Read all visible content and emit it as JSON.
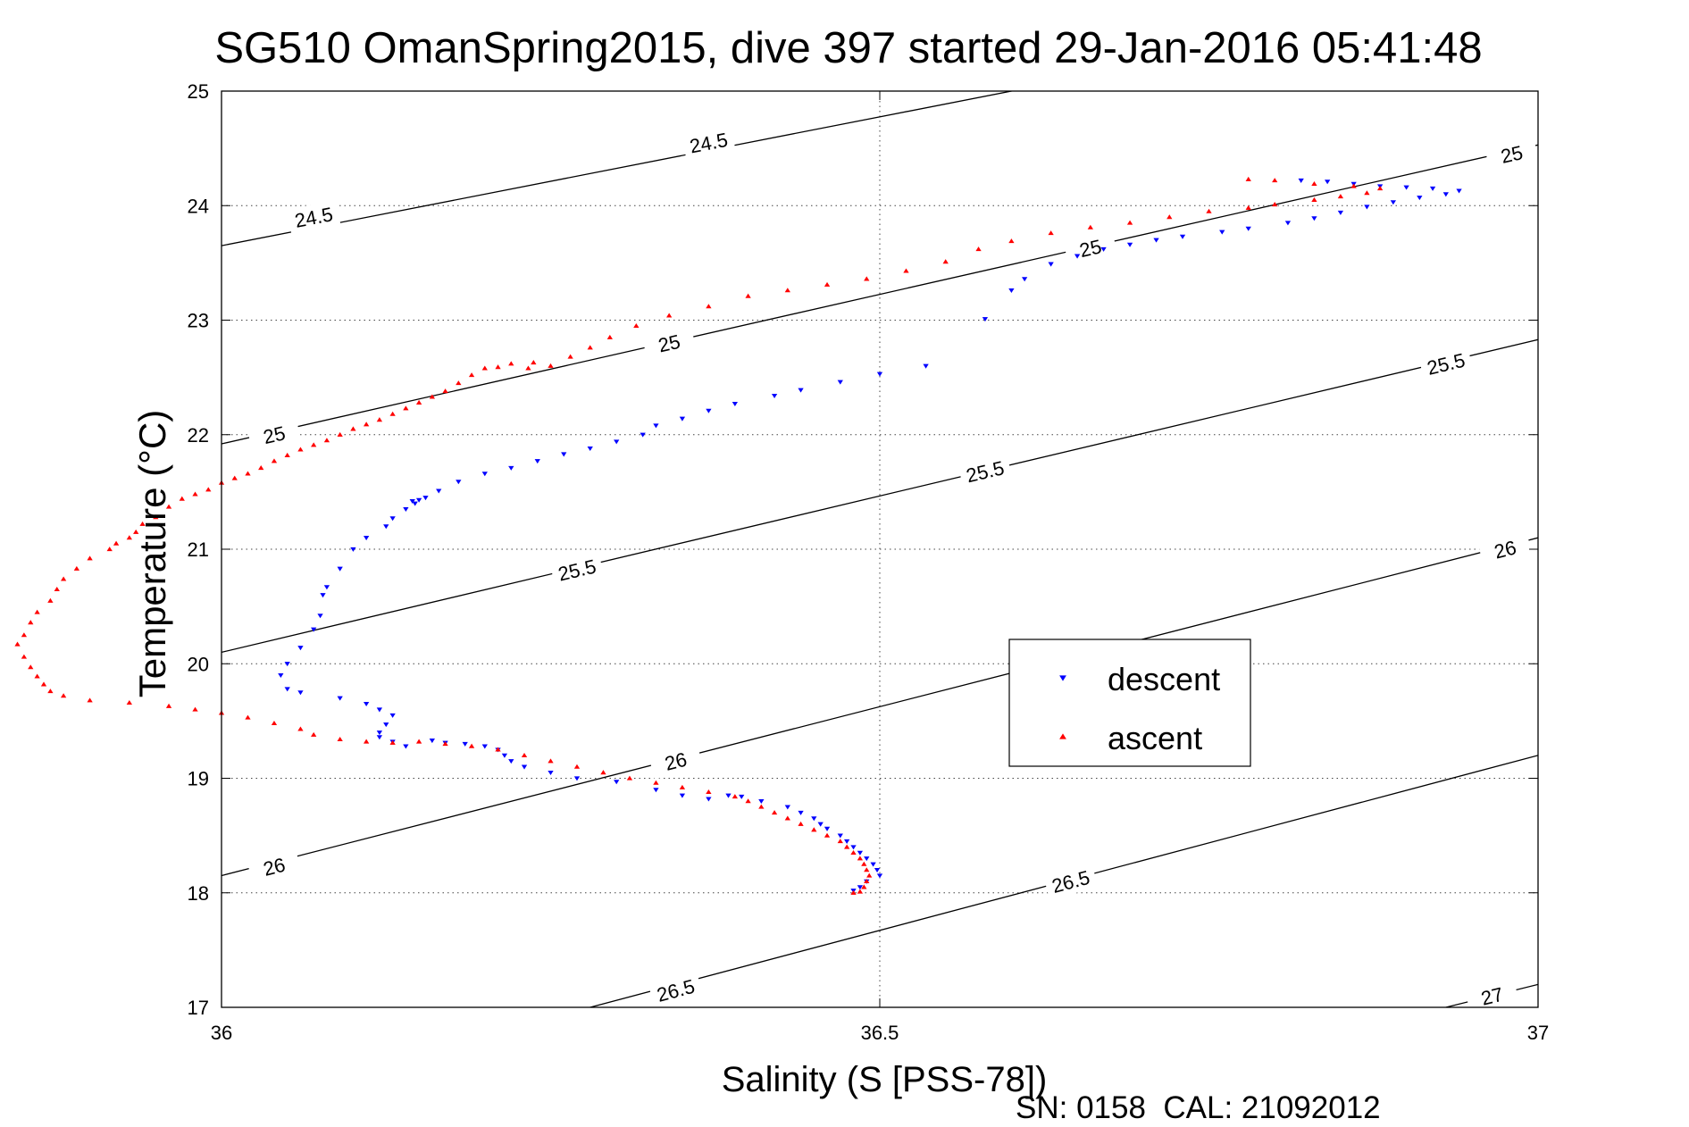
{
  "chart_data": {
    "type": "scatter",
    "title": "SG510 OmanSpring2015, dive 397 started 29-Jan-2016 05:41:48",
    "xlabel": "Salinity (S [PSS-78])",
    "ylabel": "Temperature (°C)",
    "footer": "SN: 0158  CAL: 21092012",
    "xlim": [
      36,
      37
    ],
    "ylim": [
      17,
      25
    ],
    "xticks": [
      36,
      36.5,
      37
    ],
    "xtick_labels": [
      "36",
      "36.5",
      "37"
    ],
    "yticks": [
      17,
      18,
      19,
      20,
      21,
      22,
      23,
      24,
      25
    ],
    "ytick_labels": [
      "17",
      "18",
      "19",
      "20",
      "21",
      "22",
      "23",
      "24",
      "25"
    ],
    "grid": "dotted",
    "legend_position": "right",
    "series": [
      {
        "name": "descent",
        "marker": "triangle-down",
        "color": "#0000ff",
        "points": [
          [
            36.82,
            24.22
          ],
          [
            36.84,
            24.21
          ],
          [
            36.86,
            24.19
          ],
          [
            36.88,
            24.17
          ],
          [
            36.9,
            24.16
          ],
          [
            36.92,
            24.15
          ],
          [
            36.94,
            24.13
          ],
          [
            36.93,
            24.1
          ],
          [
            36.91,
            24.07
          ],
          [
            36.89,
            24.03
          ],
          [
            36.87,
            23.99
          ],
          [
            36.85,
            23.94
          ],
          [
            36.83,
            23.89
          ],
          [
            36.81,
            23.85
          ],
          [
            36.78,
            23.8
          ],
          [
            36.76,
            23.77
          ],
          [
            36.73,
            23.73
          ],
          [
            36.71,
            23.7
          ],
          [
            36.69,
            23.66
          ],
          [
            36.67,
            23.62
          ],
          [
            36.65,
            23.56
          ],
          [
            36.63,
            23.49
          ],
          [
            36.61,
            23.36
          ],
          [
            36.6,
            23.26
          ],
          [
            36.58,
            23.01
          ],
          [
            36.535,
            22.6
          ],
          [
            36.5,
            22.53
          ],
          [
            36.47,
            22.46
          ],
          [
            36.44,
            22.39
          ],
          [
            36.42,
            22.34
          ],
          [
            36.39,
            22.27
          ],
          [
            36.37,
            22.21
          ],
          [
            36.35,
            22.14
          ],
          [
            36.33,
            22.08
          ],
          [
            36.32,
            22.0
          ],
          [
            36.3,
            21.94
          ],
          [
            36.28,
            21.88
          ],
          [
            36.26,
            21.83
          ],
          [
            36.24,
            21.77
          ],
          [
            36.22,
            21.71
          ],
          [
            36.2,
            21.66
          ],
          [
            36.18,
            21.59
          ],
          [
            36.165,
            21.51
          ],
          [
            36.155,
            21.45
          ],
          [
            36.15,
            21.43
          ],
          [
            36.147,
            21.4
          ],
          [
            36.145,
            21.42
          ],
          [
            36.14,
            21.35
          ],
          [
            36.13,
            21.27
          ],
          [
            36.125,
            21.2
          ],
          [
            36.11,
            21.1
          ],
          [
            36.1,
            21.0
          ],
          [
            36.09,
            20.83
          ],
          [
            36.08,
            20.67
          ],
          [
            36.077,
            20.6
          ],
          [
            36.075,
            20.42
          ],
          [
            36.07,
            20.3
          ],
          [
            36.06,
            20.14
          ],
          [
            36.05,
            20.0
          ],
          [
            36.045,
            19.9
          ],
          [
            36.05,
            19.78
          ],
          [
            36.06,
            19.75
          ],
          [
            36.09,
            19.7
          ],
          [
            36.11,
            19.65
          ],
          [
            36.12,
            19.6
          ],
          [
            36.13,
            19.55
          ],
          [
            36.125,
            19.47
          ],
          [
            36.12,
            19.4
          ],
          [
            36.12,
            19.36
          ],
          [
            36.13,
            19.32
          ],
          [
            36.14,
            19.28
          ],
          [
            36.16,
            19.33
          ],
          [
            36.17,
            19.31
          ],
          [
            36.185,
            19.3
          ],
          [
            36.2,
            19.28
          ],
          [
            36.21,
            19.25
          ],
          [
            36.215,
            19.2
          ],
          [
            36.22,
            19.15
          ],
          [
            36.23,
            19.1
          ],
          [
            36.25,
            19.05
          ],
          [
            36.27,
            19.0
          ],
          [
            36.3,
            18.97
          ],
          [
            36.33,
            18.9
          ],
          [
            36.35,
            18.85
          ],
          [
            36.37,
            18.82
          ],
          [
            36.385,
            18.85
          ],
          [
            36.395,
            18.84
          ],
          [
            36.41,
            18.8
          ],
          [
            36.43,
            18.75
          ],
          [
            36.44,
            18.7
          ],
          [
            36.45,
            18.65
          ],
          [
            36.455,
            18.6
          ],
          [
            36.46,
            18.56
          ],
          [
            36.47,
            18.5
          ],
          [
            36.475,
            18.45
          ],
          [
            36.48,
            18.4
          ],
          [
            36.485,
            18.35
          ],
          [
            36.49,
            18.3
          ],
          [
            36.495,
            18.25
          ],
          [
            36.498,
            18.2
          ],
          [
            36.5,
            18.15
          ],
          [
            36.49,
            18.1
          ],
          [
            36.485,
            18.05
          ],
          [
            36.48,
            18.02
          ]
        ]
      },
      {
        "name": "ascent",
        "marker": "triangle-up",
        "color": "#ff0000",
        "points": [
          [
            36.78,
            24.23
          ],
          [
            36.8,
            24.22
          ],
          [
            36.83,
            24.19
          ],
          [
            36.86,
            24.17
          ],
          [
            36.88,
            24.15
          ],
          [
            36.87,
            24.11
          ],
          [
            36.85,
            24.08
          ],
          [
            36.83,
            24.05
          ],
          [
            36.8,
            24.01
          ],
          [
            36.78,
            23.98
          ],
          [
            36.75,
            23.95
          ],
          [
            36.72,
            23.9
          ],
          [
            36.69,
            23.85
          ],
          [
            36.66,
            23.81
          ],
          [
            36.63,
            23.76
          ],
          [
            36.6,
            23.69
          ],
          [
            36.575,
            23.62
          ],
          [
            36.55,
            23.51
          ],
          [
            36.52,
            23.43
          ],
          [
            36.49,
            23.36
          ],
          [
            36.46,
            23.31
          ],
          [
            36.43,
            23.26
          ],
          [
            36.4,
            23.21
          ],
          [
            36.37,
            23.12
          ],
          [
            36.34,
            23.04
          ],
          [
            36.315,
            22.95
          ],
          [
            36.295,
            22.85
          ],
          [
            36.28,
            22.76
          ],
          [
            36.265,
            22.68
          ],
          [
            36.25,
            22.6
          ],
          [
            36.237,
            22.63
          ],
          [
            36.233,
            22.58
          ],
          [
            36.22,
            22.62
          ],
          [
            36.21,
            22.59
          ],
          [
            36.2,
            22.58
          ],
          [
            36.19,
            22.52
          ],
          [
            36.18,
            22.45
          ],
          [
            36.17,
            22.38
          ],
          [
            36.16,
            22.33
          ],
          [
            36.15,
            22.28
          ],
          [
            36.14,
            22.23
          ],
          [
            36.13,
            22.18
          ],
          [
            36.12,
            22.13
          ],
          [
            36.11,
            22.09
          ],
          [
            36.1,
            22.05
          ],
          [
            36.09,
            22.0
          ],
          [
            36.08,
            21.95
          ],
          [
            36.07,
            21.91
          ],
          [
            36.06,
            21.87
          ],
          [
            36.05,
            21.82
          ],
          [
            36.04,
            21.77
          ],
          [
            36.03,
            21.71
          ],
          [
            36.02,
            21.66
          ],
          [
            36.01,
            21.62
          ],
          [
            36.0,
            21.58
          ],
          [
            35.99,
            21.52
          ],
          [
            35.98,
            21.48
          ],
          [
            35.97,
            21.44
          ],
          [
            35.96,
            21.37
          ],
          [
            35.95,
            21.28
          ],
          [
            35.94,
            21.22
          ],
          [
            35.935,
            21.15
          ],
          [
            35.93,
            21.1
          ],
          [
            35.92,
            21.05
          ],
          [
            35.915,
            21.0
          ],
          [
            35.9,
            20.92
          ],
          [
            35.89,
            20.83
          ],
          [
            35.88,
            20.74
          ],
          [
            35.875,
            20.65
          ],
          [
            35.87,
            20.55
          ],
          [
            35.86,
            20.45
          ],
          [
            35.855,
            20.36
          ],
          [
            35.85,
            20.25
          ],
          [
            35.845,
            20.17
          ],
          [
            35.85,
            20.06
          ],
          [
            35.855,
            19.97
          ],
          [
            35.86,
            19.89
          ],
          [
            35.865,
            19.82
          ],
          [
            35.87,
            19.76
          ],
          [
            35.88,
            19.72
          ],
          [
            35.9,
            19.68
          ],
          [
            35.93,
            19.66
          ],
          [
            35.96,
            19.63
          ],
          [
            35.98,
            19.6
          ],
          [
            36.0,
            19.57
          ],
          [
            36.02,
            19.53
          ],
          [
            36.04,
            19.48
          ],
          [
            36.06,
            19.43
          ],
          [
            36.07,
            19.38
          ],
          [
            36.09,
            19.34
          ],
          [
            36.11,
            19.32
          ],
          [
            36.13,
            19.31
          ],
          [
            36.15,
            19.32
          ],
          [
            36.17,
            19.3
          ],
          [
            36.19,
            19.28
          ],
          [
            36.21,
            19.25
          ],
          [
            36.23,
            19.2
          ],
          [
            36.25,
            19.15
          ],
          [
            36.27,
            19.1
          ],
          [
            36.29,
            19.05
          ],
          [
            36.31,
            19.0
          ],
          [
            36.33,
            18.96
          ],
          [
            36.35,
            18.92
          ],
          [
            36.37,
            18.88
          ],
          [
            36.39,
            18.84
          ],
          [
            36.4,
            18.8
          ],
          [
            36.41,
            18.75
          ],
          [
            36.42,
            18.7
          ],
          [
            36.43,
            18.65
          ],
          [
            36.44,
            18.6
          ],
          [
            36.45,
            18.55
          ],
          [
            36.46,
            18.5
          ],
          [
            36.47,
            18.45
          ],
          [
            36.475,
            18.4
          ],
          [
            36.48,
            18.35
          ],
          [
            36.485,
            18.3
          ],
          [
            36.488,
            18.25
          ],
          [
            36.49,
            18.2
          ],
          [
            36.492,
            18.15
          ],
          [
            36.49,
            18.1
          ],
          [
            36.488,
            18.05
          ],
          [
            36.485,
            18.01
          ],
          [
            36.48,
            18.0
          ]
        ]
      }
    ],
    "contours": [
      {
        "label": "24.5",
        "line": [
          [
            36.0,
            23.65
          ],
          [
            37.0,
            25.9
          ]
        ],
        "label_positions": [
          [
            36.07,
            23.9
          ],
          [
            36.37,
            24.55
          ]
        ]
      },
      {
        "label": "25",
        "line": [
          [
            36.0,
            21.92
          ],
          [
            37.0,
            24.53
          ]
        ],
        "label_positions": [
          [
            36.04,
            22.0
          ],
          [
            36.34,
            22.8
          ],
          [
            36.66,
            23.63
          ],
          [
            36.98,
            24.45
          ]
        ]
      },
      {
        "label": "25.5",
        "line": [
          [
            36.0,
            20.1
          ],
          [
            37.0,
            22.83
          ]
        ],
        "label_positions": [
          [
            36.27,
            20.82
          ],
          [
            36.58,
            21.68
          ],
          [
            36.93,
            22.62
          ]
        ]
      },
      {
        "label": "26",
        "line": [
          [
            36.0,
            18.15
          ],
          [
            37.0,
            21.1
          ]
        ],
        "label_positions": [
          [
            36.04,
            18.23
          ],
          [
            36.345,
            19.15
          ],
          [
            36.975,
            21.0
          ]
        ]
      },
      {
        "label": "26.5",
        "line": [
          [
            36.28,
            17.0
          ],
          [
            37.0,
            19.2
          ]
        ],
        "label_positions": [
          [
            36.345,
            17.15
          ],
          [
            36.645,
            18.1
          ]
        ]
      },
      {
        "label": "27",
        "line": [
          [
            36.93,
            17.0
          ],
          [
            37.0,
            17.2
          ]
        ],
        "label_positions": [
          [
            36.965,
            17.1
          ]
        ]
      }
    ]
  }
}
